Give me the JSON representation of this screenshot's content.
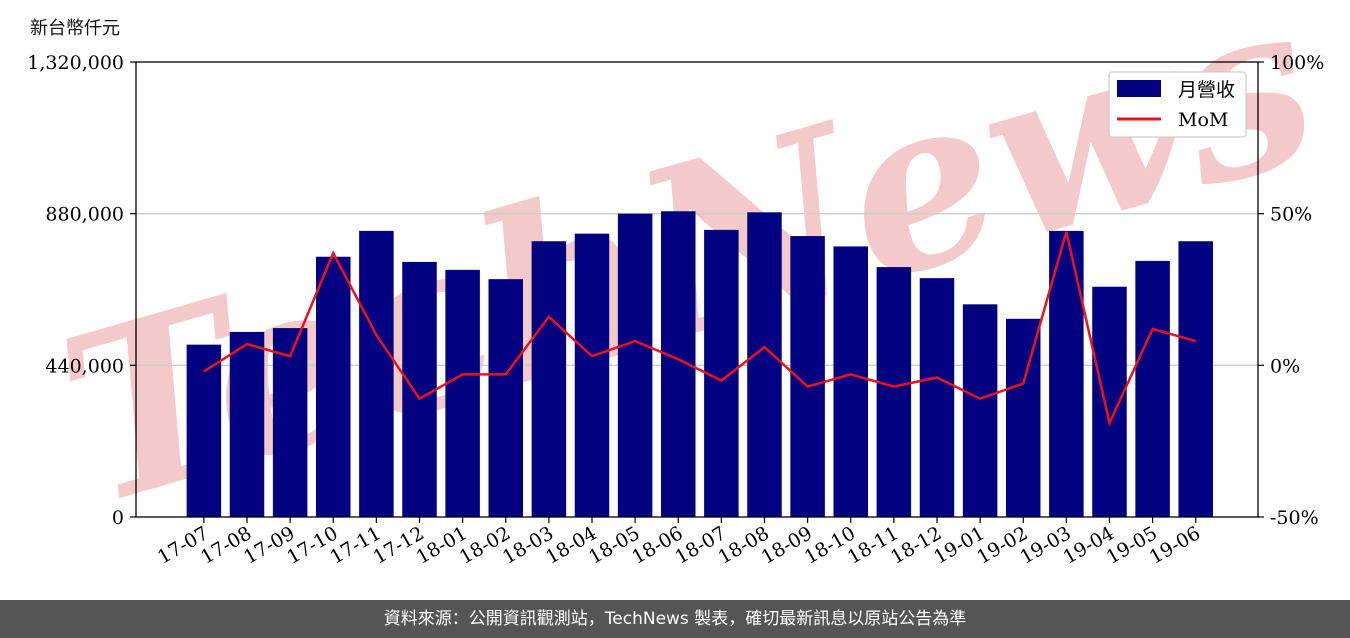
{
  "unit_label": "新台幣仟元",
  "footer": "資料來源：公開資訊觀測站，TechNews 製表，確切最新訊息以原站公告為準",
  "watermark": "TechNews",
  "colors": {
    "bar": "#000080",
    "line": "#e8141a",
    "grid": "#cccccc",
    "watermark": "#f3c9c9"
  },
  "chart_data": {
    "type": "bar",
    "categories": [
      "17-07",
      "17-08",
      "17-09",
      "17-10",
      "17-11",
      "17-12",
      "18-01",
      "18-02",
      "18-03",
      "18-04",
      "18-05",
      "18-06",
      "18-07",
      "18-08",
      "18-09",
      "18-10",
      "18-11",
      "18-12",
      "19-01",
      "19-02",
      "19-03",
      "19-04",
      "19-05",
      "19-06"
    ],
    "series": [
      {
        "name": "月營收",
        "type": "bar",
        "axis": "left",
        "values": [
          500000,
          537000,
          548000,
          755000,
          830000,
          740000,
          717000,
          690000,
          800000,
          822000,
          880000,
          887000,
          833000,
          884000,
          815000,
          785000,
          725000,
          693000,
          617000,
          575000,
          830000,
          668000,
          743000,
          800000
        ]
      },
      {
        "name": "MoM",
        "type": "line",
        "axis": "right",
        "values": [
          -2,
          7,
          3,
          37,
          10,
          -11,
          -3,
          -3,
          16,
          3,
          8,
          2,
          -5,
          6,
          -7,
          -3,
          -7,
          -4,
          -11,
          -6,
          44,
          -19,
          12,
          8
        ]
      }
    ],
    "y_left": {
      "ylim": [
        0,
        1320000
      ],
      "ticks": [
        "0",
        "440,000",
        "880,000",
        "1,320,000"
      ],
      "tick_values": [
        0,
        440000,
        880000,
        1320000
      ]
    },
    "y_right": {
      "ylim": [
        -50,
        100
      ],
      "ticks": [
        "-50%",
        "0%",
        "50%",
        "100%"
      ],
      "tick_values": [
        -50,
        0,
        50,
        100
      ]
    },
    "grid": "horizontal",
    "legend": "top-right"
  }
}
